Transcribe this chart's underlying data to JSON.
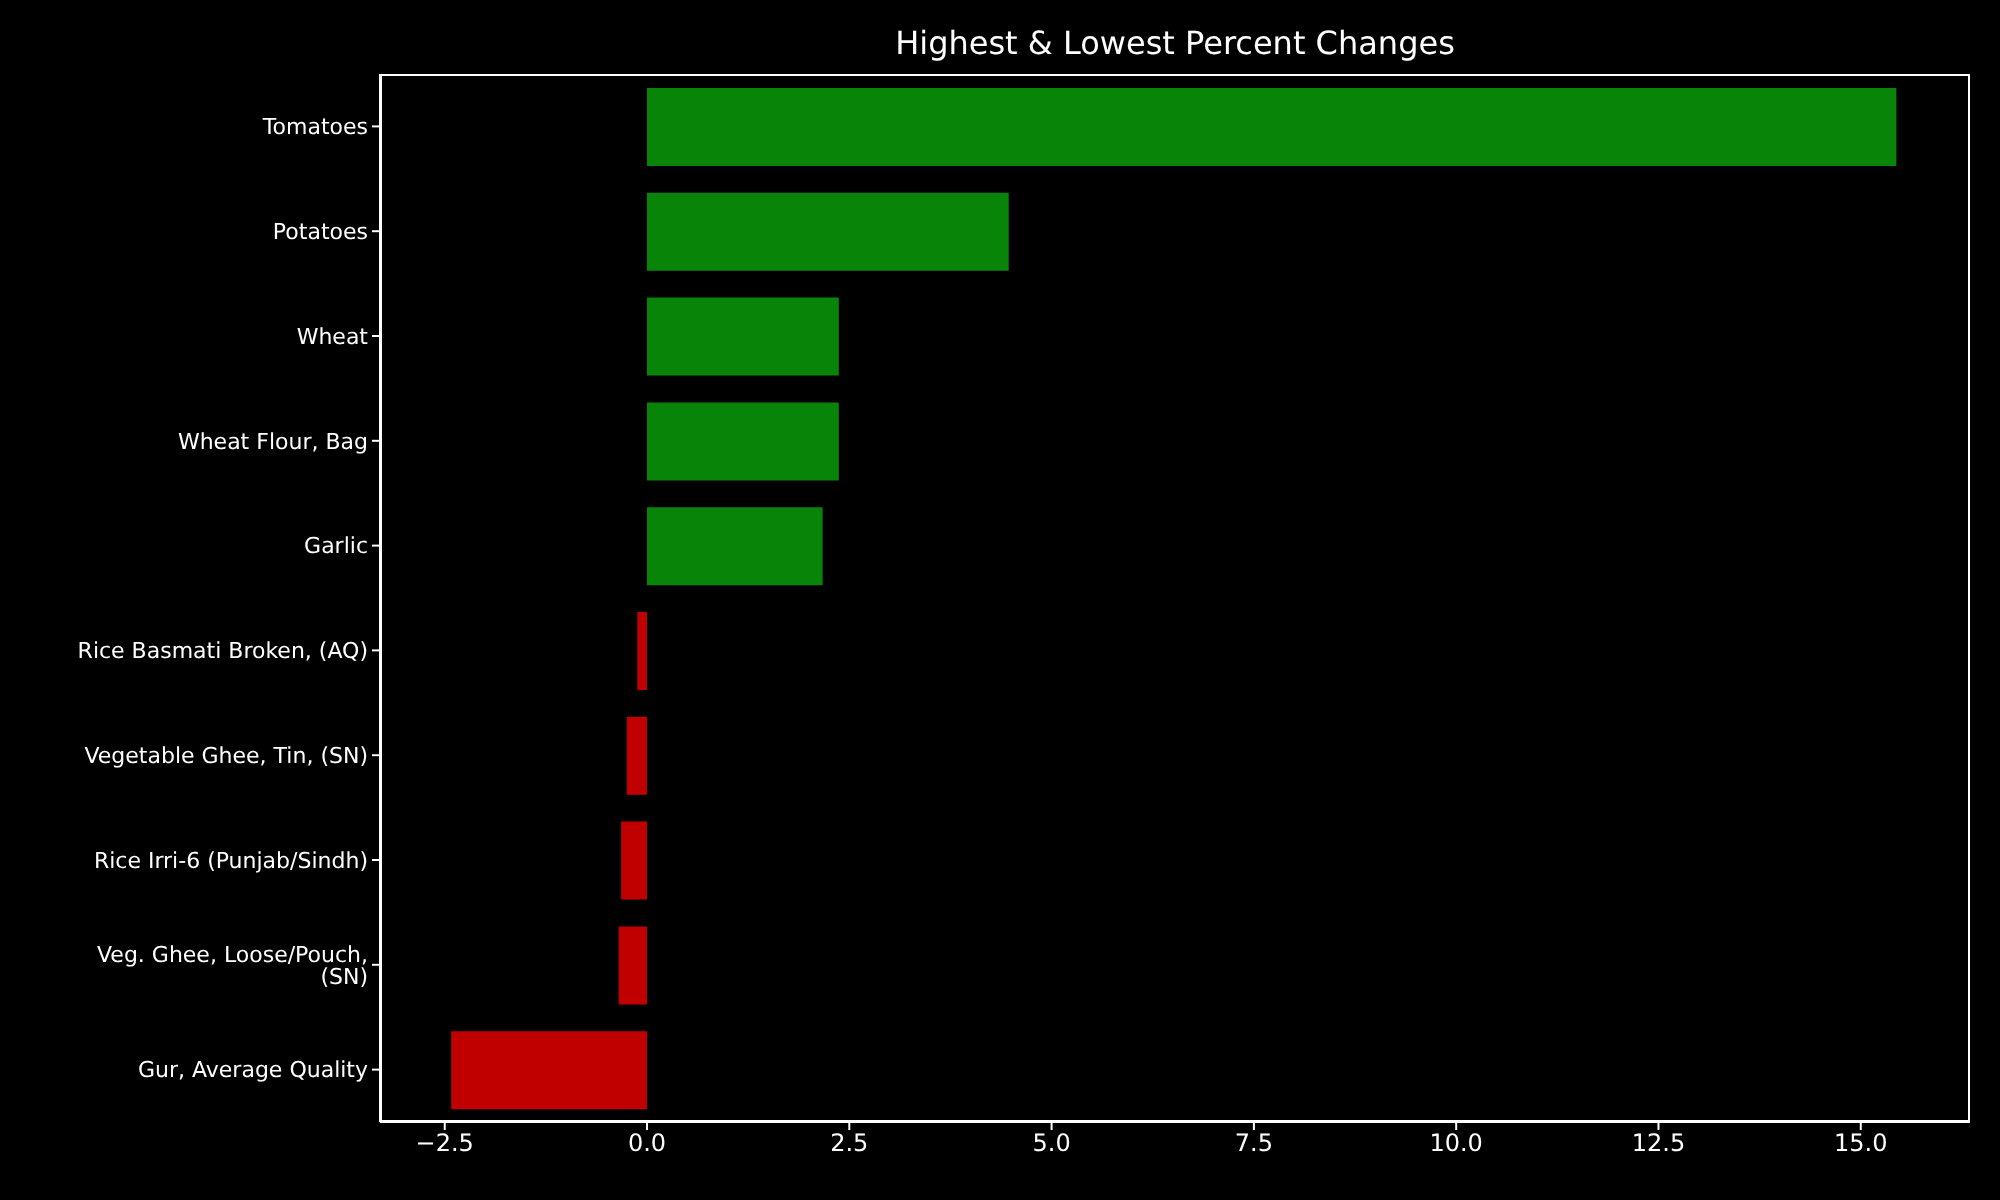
{
  "chart_data": {
    "type": "bar",
    "orientation": "horizontal",
    "title": "Highest & Lowest Percent Changes",
    "categories": [
      "Tomatoes",
      "Potatoes",
      "Wheat",
      "Wheat Flour, Bag",
      "Garlic",
      "Rice Basmati Broken, (AQ)",
      "Vegetable Ghee, Tin, (SN)",
      "Rice Irri-6 (Punjab/Sindh)",
      "Veg. Ghee, Loose/Pouch, (SN)",
      "Gur, Average Quality"
    ],
    "values": [
      15.44,
      4.47,
      2.37,
      2.37,
      2.17,
      -0.12,
      -0.25,
      -0.32,
      -0.35,
      -2.42
    ],
    "colors": [
      "#088408",
      "#088408",
      "#088408",
      "#088408",
      "#088408",
      "#c00000",
      "#c00000",
      "#c00000",
      "#c00000",
      "#c00000"
    ],
    "xlim": [
      -3.3,
      16.35
    ],
    "xticks": [
      {
        "value": -2.5,
        "label": "−2.5"
      },
      {
        "value": 0,
        "label": "0.0"
      },
      {
        "value": 2.5,
        "label": "2.5"
      },
      {
        "value": 5,
        "label": "5.0"
      },
      {
        "value": 7.5,
        "label": "7.5"
      },
      {
        "value": 10,
        "label": "10.0"
      },
      {
        "value": 12.5,
        "label": "12.5"
      },
      {
        "value": 15,
        "label": "15.0"
      }
    ],
    "grid": false,
    "legend": false
  }
}
